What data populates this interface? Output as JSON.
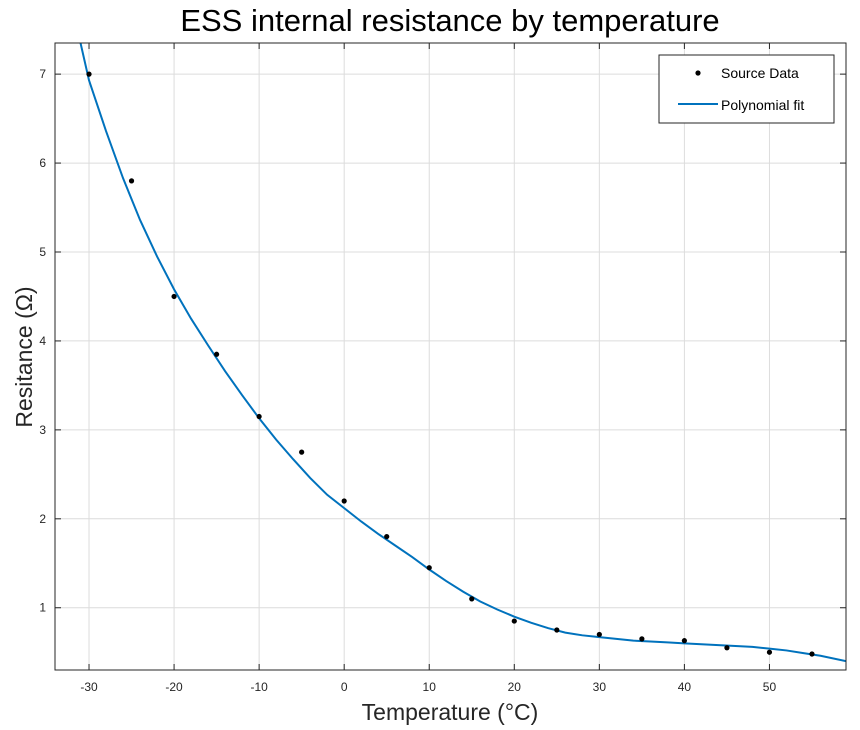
{
  "chart_data": {
    "type": "scatter",
    "title": "ESS internal resistance by temperature",
    "xlabel": "Temperature (°C)",
    "ylabel": "Resitance (Ω)",
    "xlim": [
      -34,
      59
    ],
    "ylim": [
      0.3,
      7.35
    ],
    "xticks": [
      -30,
      -20,
      -10,
      0,
      10,
      20,
      30,
      40,
      50
    ],
    "yticks": [
      1,
      2,
      3,
      4,
      5,
      6,
      7
    ],
    "grid": true,
    "legend_position": "top-right",
    "series": [
      {
        "name": "Source Data",
        "kind": "markers",
        "color": "#000000",
        "x": [
          -30,
          -25,
          -20,
          -15,
          -10,
          -5,
          0,
          5,
          10,
          15,
          20,
          25,
          30,
          35,
          40,
          45,
          50,
          55
        ],
        "y": [
          7.0,
          5.8,
          4.5,
          3.85,
          3.15,
          2.75,
          2.2,
          1.8,
          1.45,
          1.1,
          0.85,
          0.75,
          0.7,
          0.65,
          0.63,
          0.55,
          0.5,
          0.48
        ]
      },
      {
        "name": "Polynomial fit",
        "kind": "line",
        "color": "#0072BD",
        "x": [
          -31,
          -30,
          -28,
          -26,
          -24,
          -22,
          -20,
          -18,
          -16,
          -14,
          -12,
          -10,
          -8,
          -6,
          -4,
          -2,
          0,
          2,
          4,
          6,
          8,
          10,
          12,
          14,
          16,
          18,
          20,
          22,
          24,
          26,
          28,
          30,
          32,
          34,
          36,
          38,
          40,
          42,
          44,
          46,
          48,
          50,
          52,
          54,
          56,
          59
        ],
        "y": [
          7.35,
          6.93,
          6.36,
          5.83,
          5.36,
          4.95,
          4.58,
          4.25,
          3.95,
          3.66,
          3.39,
          3.13,
          2.89,
          2.67,
          2.46,
          2.27,
          2.12,
          1.97,
          1.83,
          1.7,
          1.57,
          1.43,
          1.3,
          1.18,
          1.07,
          0.98,
          0.9,
          0.83,
          0.77,
          0.72,
          0.69,
          0.67,
          0.65,
          0.63,
          0.62,
          0.61,
          0.6,
          0.59,
          0.58,
          0.57,
          0.56,
          0.54,
          0.52,
          0.49,
          0.46,
          0.4
        ]
      }
    ]
  }
}
